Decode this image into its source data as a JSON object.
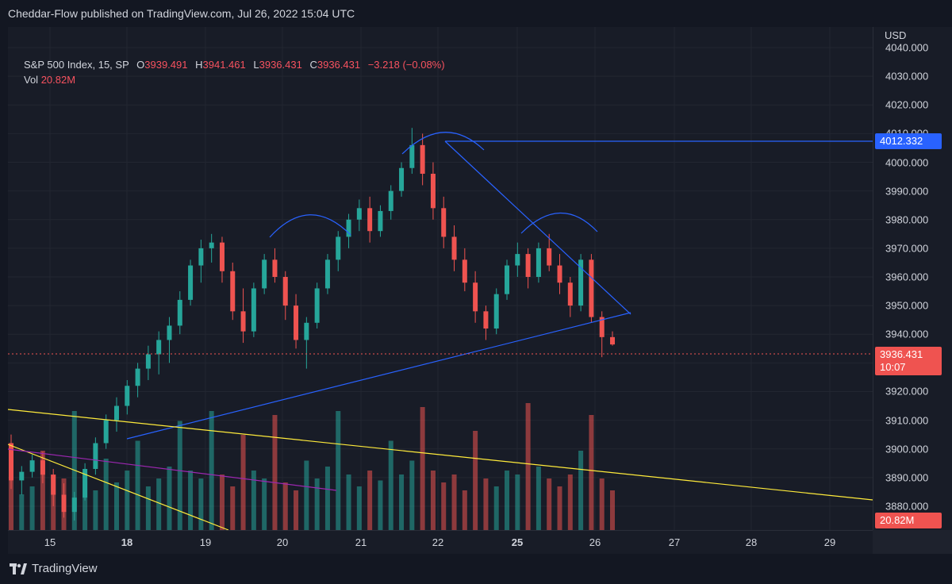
{
  "header": {
    "publish_line": "Cheddar-Flow published on TradingView.com, Jul 26, 2022 15:04 UTC"
  },
  "legend": {
    "symbol": "S&P 500 Index, 15, SP",
    "open_label": "O",
    "open": "3939.491",
    "high_label": "H",
    "high": "3941.461",
    "low_label": "L",
    "low": "3936.431",
    "close_label": "C",
    "close": "3936.431",
    "change": "−3.218 (−0.08%)",
    "vol_label": "Vol",
    "vol": "20.82M"
  },
  "price_axis": {
    "currency": "USD",
    "ticks": [
      "4040.000",
      "4030.000",
      "4020.000",
      "4010.000",
      "4000.000",
      "3990.000",
      "3980.000",
      "3970.000",
      "3960.000",
      "3950.000",
      "3940.000",
      "3930.000",
      "3920.000",
      "3910.000",
      "3900.000",
      "3890.000",
      "3880.000"
    ],
    "last_price_tag": "3936.431",
    "countdown": "10:07",
    "level_tag": "4012.332",
    "volume_tag": "20.82M"
  },
  "time_axis": {
    "labels": [
      {
        "text": "15",
        "bold": false
      },
      {
        "text": "18",
        "bold": true
      },
      {
        "text": "19",
        "bold": false
      },
      {
        "text": "20",
        "bold": false
      },
      {
        "text": "21",
        "bold": false
      },
      {
        "text": "22",
        "bold": false
      },
      {
        "text": "25",
        "bold": true
      },
      {
        "text": "26",
        "bold": false
      },
      {
        "text": "27",
        "bold": false
      },
      {
        "text": "28",
        "bold": false
      },
      {
        "text": "29",
        "bold": false
      }
    ]
  },
  "footer": {
    "brand": "TradingView",
    "logo_icon": "tradingview-logo-icon"
  },
  "colors": {
    "bg": "#181c27",
    "up": "#26a69a",
    "down": "#ef5350",
    "trend_blue": "#2962ff",
    "trend_yellow": "#ffeb3b",
    "trend_purple": "#9c27b0",
    "grid": "#222631"
  },
  "chart_data": {
    "type": "candlestick",
    "x_label_dates": [
      "15",
      "18",
      "19",
      "20",
      "21",
      "22",
      "25",
      "26"
    ],
    "ohlc_approx": [
      [
        3902,
        3905,
        3886,
        3889
      ],
      [
        3889,
        3894,
        3884,
        3892
      ],
      [
        3892,
        3898,
        3890,
        3896
      ],
      [
        3896,
        3899,
        3888,
        3891
      ],
      [
        3891,
        3893,
        3880,
        3884
      ],
      [
        3884,
        3888,
        3876,
        3878
      ],
      [
        3878,
        3885,
        3875,
        3883
      ],
      [
        3883,
        3895,
        3882,
        3893
      ],
      [
        3893,
        3904,
        3891,
        3902
      ],
      [
        3902,
        3912,
        3900,
        3910
      ],
      [
        3910,
        3918,
        3906,
        3915
      ],
      [
        3915,
        3924,
        3912,
        3922
      ],
      [
        3922,
        3930,
        3918,
        3928
      ],
      [
        3928,
        3936,
        3924,
        3933
      ],
      [
        3933,
        3941,
        3926,
        3938
      ],
      [
        3938,
        3946,
        3930,
        3943
      ],
      [
        3943,
        3955,
        3940,
        3952
      ],
      [
        3952,
        3966,
        3950,
        3964
      ],
      [
        3964,
        3973,
        3958,
        3970
      ],
      [
        3970,
        3975,
        3965,
        3972
      ],
      [
        3972,
        3974,
        3958,
        3962
      ],
      [
        3962,
        3965,
        3945,
        3948
      ],
      [
        3948,
        3956,
        3937,
        3941
      ],
      [
        3941,
        3958,
        3939,
        3956
      ],
      [
        3956,
        3968,
        3954,
        3966
      ],
      [
        3966,
        3970,
        3958,
        3960
      ],
      [
        3960,
        3962,
        3945,
        3950
      ],
      [
        3950,
        3954,
        3935,
        3938
      ],
      [
        3938,
        3946,
        3928,
        3944
      ],
      [
        3944,
        3958,
        3942,
        3956
      ],
      [
        3956,
        3968,
        3954,
        3966
      ],
      [
        3966,
        3976,
        3962,
        3974
      ],
      [
        3974,
        3982,
        3970,
        3980
      ],
      [
        3980,
        3987,
        3976,
        3984
      ],
      [
        3984,
        3988,
        3972,
        3976
      ],
      [
        3976,
        3985,
        3974,
        3983
      ],
      [
        3983,
        3992,
        3980,
        3990
      ],
      [
        3990,
        4000,
        3988,
        3998
      ],
      [
        3998,
        4012,
        3996,
        4006
      ],
      [
        4006,
        4010,
        3992,
        3996
      ],
      [
        3996,
        4000,
        3980,
        3984
      ],
      [
        3984,
        3988,
        3970,
        3974
      ],
      [
        3974,
        3978,
        3962,
        3966
      ],
      [
        3966,
        3970,
        3955,
        3958
      ],
      [
        3958,
        3962,
        3944,
        3948
      ],
      [
        3948,
        3950,
        3938,
        3942
      ],
      [
        3942,
        3956,
        3940,
        3954
      ],
      [
        3954,
        3966,
        3952,
        3964
      ],
      [
        3964,
        3972,
        3960,
        3968
      ],
      [
        3968,
        3970,
        3956,
        3960
      ],
      [
        3960,
        3972,
        3958,
        3970
      ],
      [
        3970,
        3975,
        3962,
        3964
      ],
      [
        3964,
        3968,
        3954,
        3958
      ],
      [
        3958,
        3960,
        3946,
        3950
      ],
      [
        3950,
        3968,
        3948,
        3966
      ],
      [
        3966,
        3968,
        3944,
        3946
      ],
      [
        3946,
        3948,
        3932,
        3939
      ],
      [
        3939,
        3941,
        3936,
        3936.431
      ]
    ],
    "volume_approx": [
      30,
      18,
      22,
      40,
      28,
      26,
      60,
      25,
      20,
      36,
      24,
      30,
      45,
      22,
      26,
      32,
      55,
      30,
      26,
      60,
      28,
      22,
      48,
      30,
      26,
      58,
      24,
      20,
      35,
      26,
      32,
      60,
      28,
      22,
      30,
      25,
      45,
      28,
      35,
      62,
      30,
      24,
      28,
      20,
      50,
      26,
      22,
      30,
      28,
      64,
      32,
      26,
      22,
      28,
      40,
      58,
      26,
      20
    ],
    "last": 3936.431,
    "levels": [
      4012.332
    ],
    "ylim": [
      3875,
      4045
    ]
  }
}
